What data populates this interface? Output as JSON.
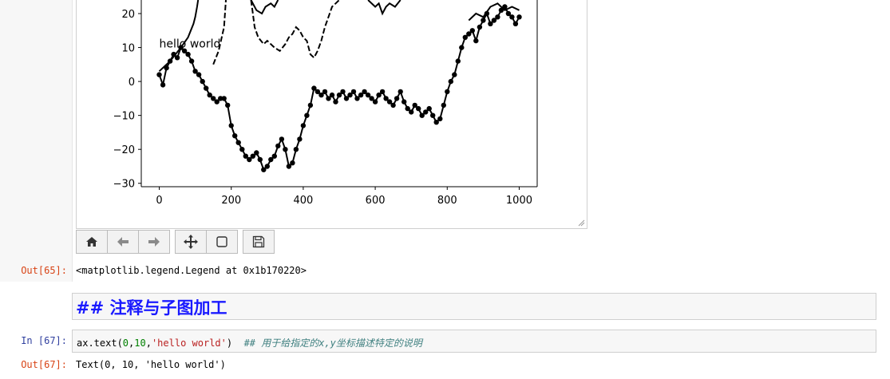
{
  "figure": {
    "chart_data": {
      "type": "line",
      "title": "",
      "xlabel": "",
      "ylabel": "",
      "xlim": [
        -50,
        1050
      ],
      "ylim": [
        -31,
        24
      ],
      "x_ticks": [
        0,
        200,
        400,
        600,
        800,
        1000
      ],
      "y_ticks": [
        -30,
        -20,
        -10,
        0,
        10,
        20
      ],
      "x_tick_labels": [
        "0",
        "200",
        "400",
        "600",
        "800",
        "1000"
      ],
      "y_tick_labels": [
        "−30",
        "−20",
        "−10",
        "0",
        "10",
        "20"
      ],
      "annotation": {
        "text": "hello world",
        "x": 0,
        "y": 10
      },
      "series": [
        {
          "style": "solid",
          "x": [
            0,
            30,
            60,
            80,
            95,
            100,
            105,
            108
          ],
          "y": [
            3,
            6,
            10,
            13,
            17,
            19,
            22,
            24
          ]
        },
        {
          "style": "dashed",
          "x": [
            150,
            165,
            180,
            185
          ],
          "y": [
            5,
            9,
            16,
            24
          ]
        },
        {
          "style": "solid",
          "x": [
            255,
            270,
            285,
            295,
            310,
            320,
            330
          ],
          "y": [
            24,
            21,
            20,
            22,
            23,
            22,
            24
          ]
        },
        {
          "style": "dashed",
          "x": [
            255,
            260,
            265,
            275,
            290,
            300,
            310,
            320,
            335,
            350,
            360,
            370,
            380,
            390,
            400,
            410,
            420,
            430,
            440,
            450,
            460,
            470,
            480,
            490,
            500
          ],
          "y": [
            24,
            20,
            16,
            13,
            11,
            12,
            11,
            10,
            9,
            11,
            13,
            14,
            16,
            15,
            13,
            12,
            8,
            7,
            9,
            12,
            16,
            19,
            22,
            23,
            24
          ]
        },
        {
          "style": "solid",
          "x": [
            580,
            600,
            610,
            620,
            630,
            640,
            655,
            670
          ],
          "y": [
            24,
            22,
            23,
            20,
            22,
            23,
            22,
            24
          ]
        },
        {
          "style": "solid",
          "x": [
            860,
            880,
            900,
            920,
            940,
            960,
            980,
            1000
          ],
          "y": [
            18,
            20,
            19,
            22,
            23,
            21,
            22,
            21
          ]
        },
        {
          "style": "markers",
          "x": [
            0,
            10,
            20,
            30,
            40,
            50,
            60,
            70,
            80,
            90,
            100,
            110,
            120,
            130,
            140,
            150,
            160,
            170,
            180,
            190,
            200,
            210,
            220,
            230,
            240,
            250,
            260,
            270,
            280,
            290,
            300,
            310,
            320,
            330,
            340,
            350,
            360,
            370,
            380,
            390,
            400,
            410,
            420,
            430,
            440,
            450,
            460,
            470,
            480,
            490,
            500,
            510,
            520,
            530,
            540,
            550,
            560,
            570,
            580,
            590,
            600,
            610,
            620,
            630,
            640,
            650,
            660,
            670,
            680,
            690,
            700,
            710,
            720,
            730,
            740,
            750,
            760,
            770,
            780,
            790,
            800,
            810,
            820,
            830,
            840,
            850,
            860,
            870,
            880,
            890,
            900,
            910,
            920,
            930,
            940,
            950,
            960,
            970,
            980,
            990,
            1000
          ],
          "y": [
            2,
            -1,
            4,
            6,
            8,
            7,
            10,
            9,
            8,
            6,
            3,
            2,
            0,
            -2,
            -4,
            -5,
            -6,
            -5,
            -5,
            -7,
            -13,
            -16,
            -18,
            -20,
            -22,
            -23,
            -22,
            -21,
            -23,
            -26,
            -25,
            -23,
            -22,
            -19,
            -17,
            -20,
            -25,
            -24,
            -20,
            -17,
            -13,
            -10,
            -7,
            -2,
            -3,
            -4,
            -3,
            -5,
            -4,
            -6,
            -4,
            -3,
            -5,
            -4,
            -3,
            -5,
            -4,
            -3,
            -4,
            -5,
            -6,
            -4,
            -3,
            -5,
            -6,
            -7,
            -5,
            -3,
            -6,
            -8,
            -9,
            -7,
            -8,
            -10,
            -9,
            -8,
            -10,
            -12,
            -11,
            -7,
            -3,
            0,
            2,
            6,
            10,
            13,
            14,
            15,
            12,
            16,
            18,
            20,
            17,
            18,
            19,
            21,
            22,
            20,
            19,
            17,
            19
          ]
        }
      ]
    }
  },
  "toolbar": {
    "buttons": [
      {
        "name": "home",
        "icon": "home-icon"
      },
      {
        "name": "back",
        "icon": "arrow-left-icon"
      },
      {
        "name": "forward",
        "icon": "arrow-right-icon"
      },
      {
        "name": "pan",
        "icon": "move-icon"
      },
      {
        "name": "zoom",
        "icon": "zoom-rect-icon"
      },
      {
        "name": "save",
        "icon": "save-icon"
      }
    ]
  },
  "cells": {
    "out65": {
      "prompt": "Out[65]:",
      "text": "<matplotlib.legend.Legend at 0x1b170220>"
    },
    "markdown": {
      "heading": "## 注释与子图加工"
    },
    "in67": {
      "prompt": "In  [67]:",
      "code_fn": "ax.text(",
      "code_arg1": "0",
      "code_sep1": ",",
      "code_arg2": "10",
      "code_sep2": ",",
      "code_arg3": "'hello world'",
      "code_close": ")",
      "comment": "## 用于给指定的x,y坐标描述特定的说明"
    },
    "out67": {
      "prompt": "Out[67]:",
      "text": "Text(0, 10, 'hello world')"
    }
  },
  "colors": {
    "accent_heading": "#1a1aff",
    "out_prompt": "#d84315",
    "in_prompt": "#303f9f"
  }
}
